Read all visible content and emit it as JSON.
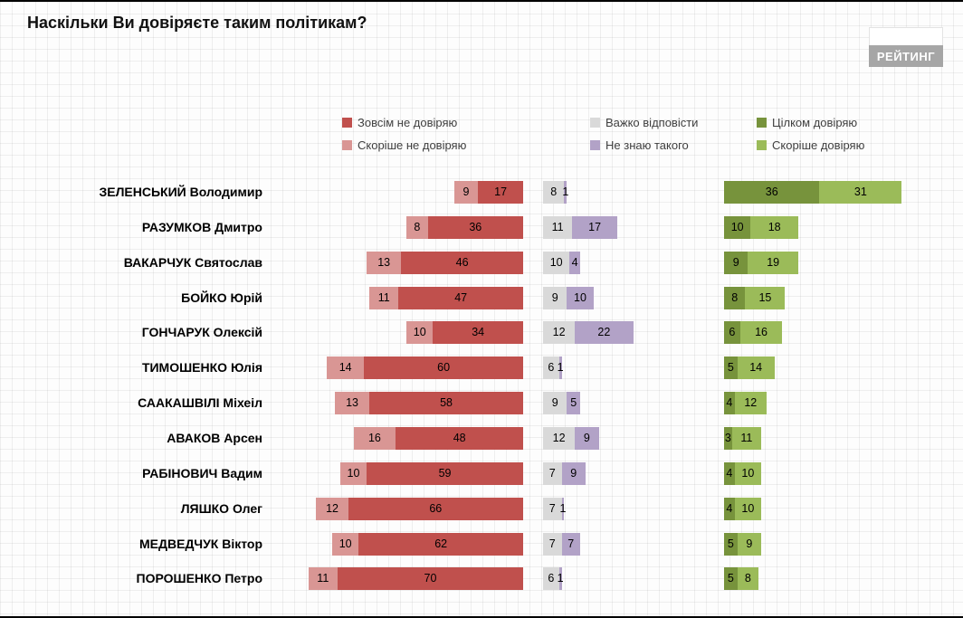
{
  "title": "Наскільки Ви довіряєте таким політикам?",
  "logo_text": "РЕЙТИНГ",
  "colors": {
    "distrust_full": "#C0504D",
    "distrust_rather": "#D99694",
    "hard_to_answer": "#D9D9D9",
    "dont_know": "#B2A2C7",
    "trust_full": "#77933C",
    "trust_rather": "#9BBB59"
  },
  "legend": {
    "columns": [
      {
        "items": [
          {
            "label": "Зовсім не довіряю",
            "color": "#C0504D"
          },
          {
            "label": "Скоріше не довіряю",
            "color": "#D99694"
          }
        ]
      },
      {
        "items": [
          {
            "label": "Важко відповісти",
            "color": "#D9D9D9"
          },
          {
            "label": "Не знаю такого",
            "color": "#B2A2C7"
          }
        ]
      },
      {
        "items": [
          {
            "label": "Цілком довіряю",
            "color": "#77933C"
          },
          {
            "label": "Скоріше довіряю",
            "color": "#9BBB59"
          }
        ]
      }
    ]
  },
  "chart_data": {
    "type": "bar",
    "orientation": "horizontal",
    "title": "Наскільки Ви довіряєте таким політикам?",
    "legend_position": "top",
    "categories": [
      "ЗЕЛЕНСЬКИЙ Володимир",
      "РАЗУМКОВ Дмитро",
      "ВАКАРЧУК Святослав",
      "БОЙКО Юрій",
      "ГОНЧАРУК Олексій",
      "ТИМОШЕНКО Юлія",
      "СААКАШВІЛІ Міхеіл",
      "АВАКОВ Арсен",
      "РАБІНОВИЧ Вадим",
      "ЛЯШКО Олег",
      "МЕДВЕДЧУК Віктор",
      "ПОРОШЕНКО Петро"
    ],
    "series": [
      {
        "name": "Скоріше не довіряю",
        "color": "#D99694",
        "values": [
          9,
          8,
          13,
          11,
          10,
          14,
          13,
          16,
          10,
          12,
          10,
          11
        ]
      },
      {
        "name": "Зовсім не довіряю",
        "color": "#C0504D",
        "values": [
          17,
          36,
          46,
          47,
          34,
          60,
          58,
          48,
          59,
          66,
          62,
          70
        ]
      },
      {
        "name": "Важко відповісти",
        "color": "#D9D9D9",
        "values": [
          8,
          11,
          10,
          9,
          12,
          6,
          9,
          12,
          7,
          7,
          7,
          6
        ]
      },
      {
        "name": "Не знаю такого",
        "color": "#B2A2C7",
        "values": [
          1,
          17,
          4,
          10,
          22,
          1,
          5,
          9,
          9,
          1,
          7,
          1
        ]
      },
      {
        "name": "Цілком довіряю",
        "color": "#77933C",
        "values": [
          36,
          10,
          9,
          8,
          6,
          5,
          4,
          3,
          4,
          4,
          5,
          5
        ]
      },
      {
        "name": "Скоріше довіряю",
        "color": "#9BBB59",
        "values": [
          31,
          18,
          19,
          15,
          16,
          14,
          12,
          11,
          10,
          10,
          9,
          8
        ]
      }
    ],
    "groups": [
      {
        "series": [
          "Скоріше не довіряю",
          "Зовсім не довіряю"
        ],
        "align": "right"
      },
      {
        "series": [
          "Важко відповісти",
          "Не знаю такого"
        ],
        "align": "left"
      },
      {
        "series": [
          "Цілком довіряю",
          "Скоріше довіряю"
        ],
        "align": "left"
      }
    ]
  }
}
